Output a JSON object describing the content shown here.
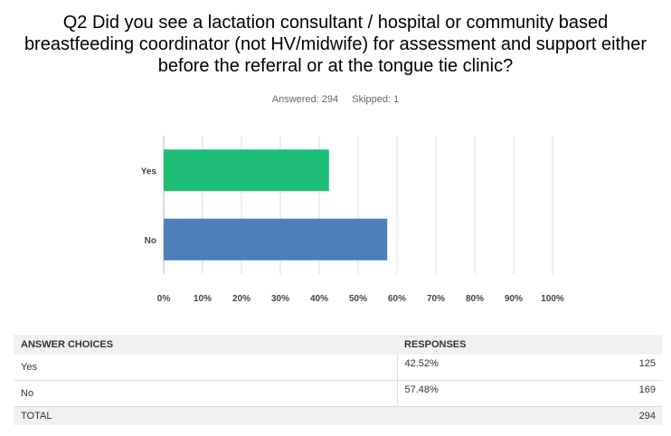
{
  "question": "Q2 Did you see a lactation consultant / hospital or community based breastfeeding coordinator (not HV/midwife) for assessment and support either before the referral or at the tongue tie clinic?",
  "meta": {
    "answered": "Answered: 294",
    "skipped": "Skipped: 1"
  },
  "chart_data": {
    "type": "bar",
    "orientation": "horizontal",
    "categories": [
      "Yes",
      "No"
    ],
    "values": [
      42.52,
      57.48
    ],
    "colors": [
      "#1ebd75",
      "#4f7fba"
    ],
    "xlim": [
      0,
      100
    ],
    "xticks": [
      "0%",
      "10%",
      "20%",
      "30%",
      "40%",
      "50%",
      "60%",
      "70%",
      "80%",
      "90%",
      "100%"
    ],
    "grid": true
  },
  "table": {
    "headers": [
      "ANSWER CHOICES",
      "RESPONSES"
    ],
    "rows": [
      {
        "choice": "Yes",
        "pct": "42.52%",
        "count": "125"
      },
      {
        "choice": "No",
        "pct": "57.48%",
        "count": "169"
      }
    ],
    "total": {
      "label": "TOTAL",
      "count": "294"
    }
  }
}
